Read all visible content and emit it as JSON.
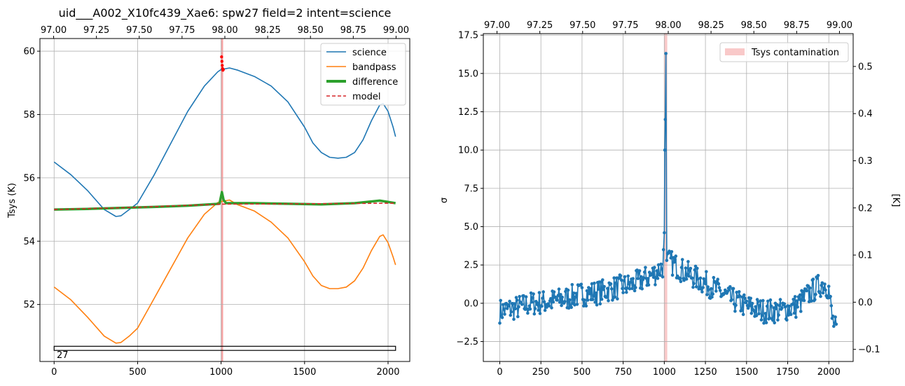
{
  "chart_data": [
    {
      "type": "line",
      "title": "uid___A002_X10fc439_Xae6: spw27 field=2 intent=science",
      "xlabel": "",
      "ylabel": "Tsys (K)",
      "xlim": [
        -85,
        2130
      ],
      "ylim": [
        50.2,
        60.4
      ],
      "xticks": [
        "0",
        "500",
        "1000",
        "1500",
        "2000"
      ],
      "yticks": [
        "52",
        "54",
        "56",
        "58",
        "60"
      ],
      "secondary_x": {
        "xlim": [
          96.92,
          99.08
        ],
        "ticks": [
          "97.00",
          "97.25",
          "97.50",
          "97.75",
          "98.00",
          "98.25",
          "98.50",
          "98.75",
          "99.00"
        ]
      },
      "grid": true,
      "legend_position": "top-right",
      "series": [
        {
          "name": "science",
          "color": "#1f77b4",
          "x": [
            0,
            25,
            100,
            200,
            300,
            370,
            400,
            450,
            500,
            600,
            700,
            800,
            900,
            980,
            1000,
            1050,
            1100,
            1200,
            1300,
            1400,
            1500,
            1550,
            1600,
            1650,
            1700,
            1750,
            1800,
            1850,
            1900,
            1950,
            1970,
            2000,
            2030,
            2045
          ],
          "y": [
            56.5,
            56.4,
            56.1,
            55.6,
            55.0,
            54.78,
            54.8,
            55.0,
            55.2,
            56.1,
            57.1,
            58.1,
            58.9,
            59.35,
            59.42,
            59.47,
            59.4,
            59.2,
            58.9,
            58.4,
            57.6,
            57.1,
            56.8,
            56.65,
            56.62,
            56.65,
            56.8,
            57.2,
            57.8,
            58.3,
            58.35,
            58.1,
            57.6,
            57.3
          ]
        },
        {
          "name": "bandpass",
          "color": "#ff7f0e",
          "x": [
            0,
            25,
            100,
            200,
            300,
            370,
            400,
            450,
            500,
            600,
            700,
            800,
            900,
            980,
            1000,
            1050,
            1100,
            1200,
            1300,
            1400,
            1500,
            1550,
            1600,
            1650,
            1700,
            1750,
            1800,
            1850,
            1900,
            1950,
            1970,
            2000,
            2030,
            2045
          ],
          "y": [
            52.55,
            52.45,
            52.15,
            51.6,
            51.0,
            50.78,
            50.8,
            51.0,
            51.25,
            52.2,
            53.15,
            54.1,
            54.85,
            55.22,
            55.25,
            55.3,
            55.15,
            54.95,
            54.6,
            54.1,
            53.35,
            52.9,
            52.6,
            52.5,
            52.5,
            52.55,
            52.75,
            53.15,
            53.7,
            54.15,
            54.2,
            53.95,
            53.5,
            53.25
          ]
        },
        {
          "name": "difference",
          "color": "#2ca02c",
          "x": [
            0,
            200,
            400,
            600,
            800,
            990,
            1005,
            1015,
            1030,
            1200,
            1400,
            1600,
            1800,
            1950,
            2045
          ],
          "y": [
            55.0,
            55.02,
            55.05,
            55.08,
            55.12,
            55.18,
            55.55,
            55.3,
            55.2,
            55.2,
            55.18,
            55.16,
            55.2,
            55.28,
            55.2
          ]
        },
        {
          "name": "model",
          "color": "#d62728",
          "x": [
            0,
            500,
            1000,
            1500,
            2045
          ],
          "y": [
            55.0,
            55.07,
            55.17,
            55.18,
            55.2
          ]
        }
      ],
      "highlight": {
        "x": [
          1000,
          1012
        ],
        "color": "#f4a3a3"
      },
      "red_points": {
        "color": "#ff0000",
        "x": [
          1003,
          1005,
          1007,
          1009,
          1011,
          1013
        ],
        "y": [
          59.82,
          59.68,
          59.55,
          59.45,
          59.4,
          59.42
        ]
      },
      "spw_box": {
        "x": [
          0,
          2045
        ],
        "y": [
          50.55,
          50.68
        ],
        "label": "27"
      }
    },
    {
      "type": "line",
      "title": "",
      "xlabel": "",
      "ylabel": "σ",
      "ylabel_right": "[K]",
      "xlim": [
        -100,
        2148
      ],
      "ylim": [
        -3.8,
        17.6
      ],
      "ylim_right": [
        -0.1257,
        0.5696
      ],
      "xticks": [
        "0",
        "250",
        "500",
        "750",
        "1000",
        "1250",
        "1500",
        "1750",
        "2000"
      ],
      "yticks": [
        "−2.5",
        "0.0",
        "2.5",
        "5.0",
        "7.5",
        "10.0",
        "12.5",
        "15.0",
        "17.5"
      ],
      "yticks_right": [
        "−0.1",
        "0.0",
        "0.1",
        "0.2",
        "0.3",
        "0.4",
        "0.5"
      ],
      "secondary_x": {
        "xlim": [
          96.92,
          99.08
        ],
        "ticks": [
          "97.00",
          "97.25",
          "97.50",
          "97.75",
          "98.00",
          "98.25",
          "98.50",
          "98.75",
          "99.00"
        ]
      },
      "grid": true,
      "legend_position": "top-right",
      "legend": [
        {
          "name": "Tsys contamination",
          "color": "#f9c9c9"
        }
      ],
      "highlight": {
        "x": [
          998,
          1018
        ]
      },
      "series": [
        {
          "name": "",
          "color": "#1f77b4",
          "x": [
            0,
            100,
            200,
            300,
            400,
            500,
            600,
            700,
            800,
            900,
            950,
            990,
            1000,
            1003,
            1006,
            1010,
            1020,
            1050,
            1100,
            1200,
            1300,
            1400,
            1500,
            1600,
            1700,
            1800,
            1850,
            1900,
            1950,
            1980,
            2000,
            2020,
            2045
          ],
          "y": [
            -0.5,
            -0.3,
            0.0,
            0.1,
            0.3,
            0.6,
            0.7,
            1.0,
            1.2,
            1.7,
            2.0,
            2.4,
            4.6,
            10.0,
            12.0,
            16.3,
            2.8,
            2.6,
            2.2,
            1.6,
            1.0,
            0.3,
            -0.2,
            -0.5,
            -0.5,
            -0.2,
            0.3,
            0.8,
            1.2,
            1.3,
            0.9,
            -1.0,
            -1.8
          ]
        }
      ]
    }
  ]
}
